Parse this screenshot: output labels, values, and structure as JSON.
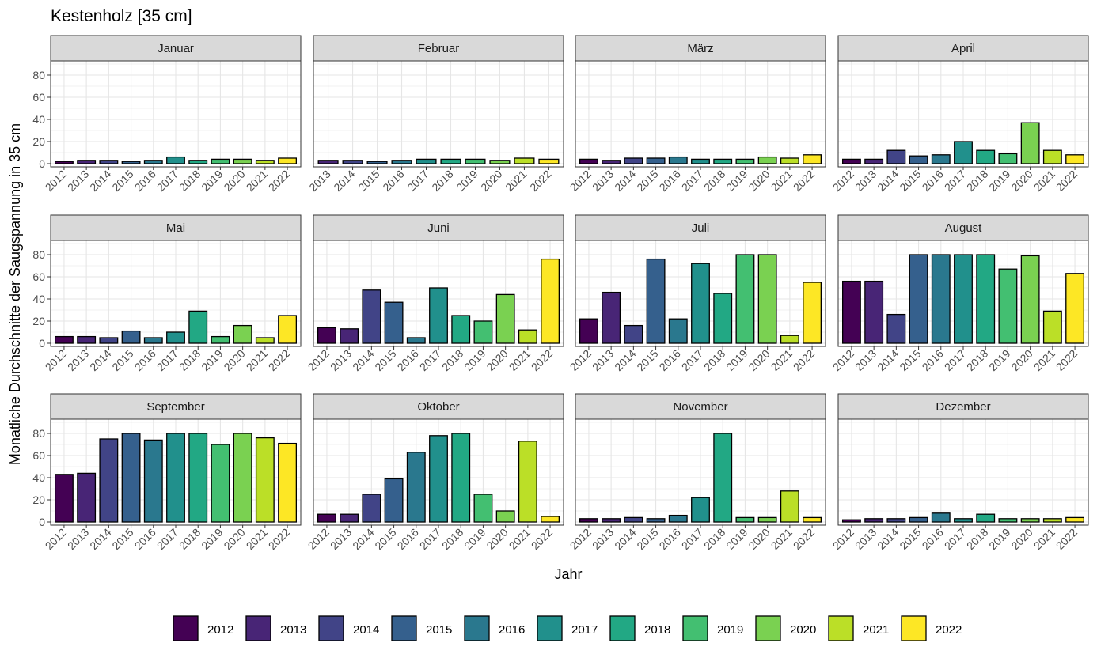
{
  "chart_data": {
    "type": "bar",
    "title": "Kestenholz [35 cm]",
    "xlabel": "Jahr",
    "ylabel": "Monatliche Durchschnitte der Saugspannung in 35 cm",
    "ylim": [
      0,
      90
    ],
    "yticks": [
      0,
      20,
      40,
      60,
      80
    ],
    "years": [
      "2012",
      "2013",
      "2014",
      "2015",
      "2016",
      "2017",
      "2018",
      "2019",
      "2020",
      "2021",
      "2022"
    ],
    "colors": {
      "2012": "#440154",
      "2013": "#482576",
      "2014": "#414487",
      "2015": "#35608D",
      "2016": "#2A788E",
      "2017": "#21908C",
      "2018": "#22A884",
      "2019": "#43BF71",
      "2020": "#7AD151",
      "2021": "#BBDF27",
      "2022": "#FDE725"
    },
    "legend_position": "bottom",
    "facets": [
      {
        "month": "Januar",
        "categories": [
          "2012",
          "2013",
          "2014",
          "2015",
          "2016",
          "2017",
          "2018",
          "2019",
          "2020",
          "2021",
          "2022"
        ],
        "values": [
          2,
          3,
          3,
          2,
          3,
          6,
          3,
          4,
          4,
          3,
          5
        ]
      },
      {
        "month": "Februar",
        "categories": [
          "2013",
          "2014",
          "2015",
          "2016",
          "2017",
          "2018",
          "2019",
          "2020",
          "2021",
          "2022"
        ],
        "values": [
          3,
          3,
          2,
          3,
          4,
          4,
          4,
          3,
          5,
          4
        ]
      },
      {
        "month": "März",
        "categories": [
          "2012",
          "2013",
          "2014",
          "2015",
          "2016",
          "2017",
          "2018",
          "2019",
          "2020",
          "2021",
          "2022"
        ],
        "values": [
          4,
          3,
          5,
          5,
          6,
          4,
          4,
          4,
          6,
          5,
          8
        ]
      },
      {
        "month": "April",
        "categories": [
          "2012",
          "2013",
          "2014",
          "2015",
          "2016",
          "2017",
          "2018",
          "2019",
          "2020",
          "2021",
          "2022"
        ],
        "values": [
          4,
          4,
          12,
          7,
          8,
          20,
          12,
          9,
          37,
          12,
          8
        ]
      },
      {
        "month": "Mai",
        "categories": [
          "2012",
          "2013",
          "2014",
          "2015",
          "2016",
          "2017",
          "2018",
          "2019",
          "2020",
          "2021",
          "2022"
        ],
        "values": [
          6,
          6,
          5,
          11,
          5,
          10,
          29,
          6,
          16,
          5,
          25
        ]
      },
      {
        "month": "Juni",
        "categories": [
          "2012",
          "2013",
          "2014",
          "2015",
          "2016",
          "2017",
          "2018",
          "2019",
          "2020",
          "2021",
          "2022"
        ],
        "values": [
          14,
          13,
          48,
          37,
          5,
          50,
          25,
          20,
          44,
          12,
          76
        ]
      },
      {
        "month": "Juli",
        "categories": [
          "2012",
          "2013",
          "2014",
          "2015",
          "2016",
          "2017",
          "2018",
          "2019",
          "2020",
          "2021",
          "2022"
        ],
        "values": [
          22,
          46,
          16,
          76,
          22,
          72,
          45,
          80,
          80,
          7,
          55
        ]
      },
      {
        "month": "August",
        "categories": [
          "2012",
          "2013",
          "2014",
          "2015",
          "2016",
          "2017",
          "2018",
          "2019",
          "2020",
          "2021",
          "2022"
        ],
        "values": [
          56,
          56,
          26,
          80,
          80,
          80,
          80,
          67,
          79,
          29,
          63
        ]
      },
      {
        "month": "September",
        "categories": [
          "2012",
          "2013",
          "2014",
          "2015",
          "2016",
          "2017",
          "2018",
          "2019",
          "2020",
          "2021",
          "2022"
        ],
        "values": [
          43,
          44,
          75,
          80,
          74,
          80,
          80,
          70,
          80,
          76,
          71
        ]
      },
      {
        "month": "Oktober",
        "categories": [
          "2012",
          "2013",
          "2014",
          "2015",
          "2016",
          "2017",
          "2018",
          "2019",
          "2020",
          "2021",
          "2022"
        ],
        "values": [
          7,
          7,
          25,
          39,
          63,
          78,
          80,
          25,
          10,
          73,
          5
        ]
      },
      {
        "month": "November",
        "categories": [
          "2012",
          "2013",
          "2014",
          "2015",
          "2016",
          "2017",
          "2018",
          "2019",
          "2020",
          "2021",
          "2022"
        ],
        "values": [
          3,
          3,
          4,
          3,
          6,
          22,
          80,
          4,
          4,
          28,
          4
        ]
      },
      {
        "month": "Dezember",
        "categories": [
          "2012",
          "2013",
          "2014",
          "2015",
          "2016",
          "2017",
          "2018",
          "2019",
          "2020",
          "2021",
          "2022"
        ],
        "values": [
          2,
          3,
          3,
          4,
          8,
          3,
          7,
          3,
          3,
          3,
          4
        ]
      }
    ]
  }
}
